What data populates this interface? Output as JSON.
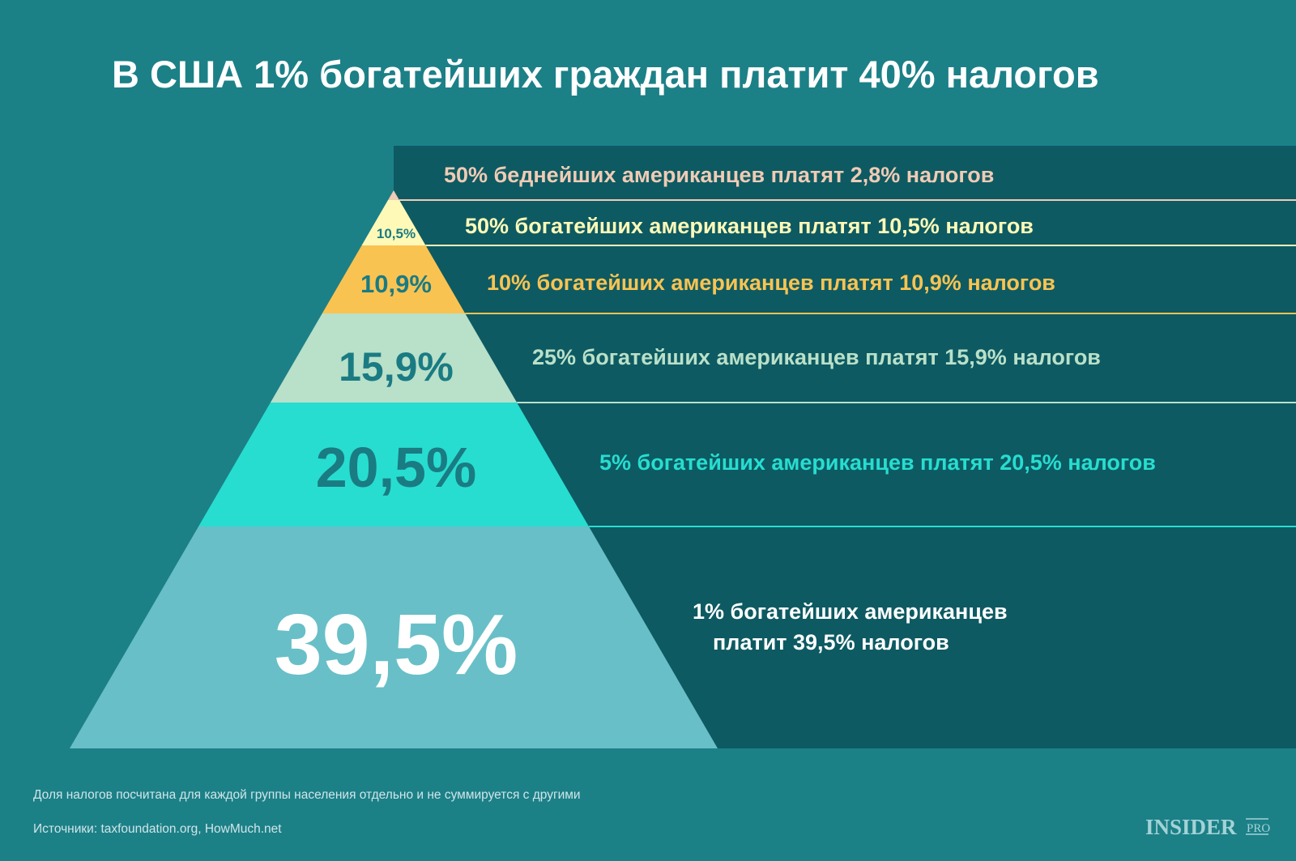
{
  "chart_data": {
    "type": "pyramid",
    "title": "В США 1% богатейших граждан платит 40% налогов",
    "tiers": [
      {
        "group": "50% беднейших",
        "value": 2.8,
        "pyramid_label": "",
        "text": "50% беднейших американцев платят 2,8% налогов",
        "color": "#f0cbb5"
      },
      {
        "group": "50% богатейших",
        "value": 10.5,
        "pyramid_label": "10,5%",
        "text": "50% богатейших американцев  платят 10,5% налогов",
        "color": "#fff9b8"
      },
      {
        "group": "10% богатейших",
        "value": 10.9,
        "pyramid_label": "10,9%",
        "text": "10% богатейших американцев платят 10,9% налогов",
        "color": "#f9c352"
      },
      {
        "group": "25% богатейших",
        "value": 15.9,
        "pyramid_label": "15,9%",
        "text": "25% богатейших американцев платят 15,9% налогов",
        "color": "#b9e0c9"
      },
      {
        "group": "5% богатейших",
        "value": 20.5,
        "pyramid_label": "20,5%",
        "text": "5% богатейших американцев платят 20,5% налогов",
        "color": "#27ddd0"
      },
      {
        "group": "1% богатейших",
        "value": 39.5,
        "pyramid_label": "39,5%",
        "text_lines": [
          "1% богатейших американцев",
          "платит 39,5% налогов"
        ],
        "color": "#68bfc7"
      }
    ]
  },
  "footer": {
    "note": "Доля налогов посчитана для каждой группы населения отдельно и не суммируется с другими",
    "sources": "Источники: taxfoundation.org, HowMuch.net"
  },
  "logo": {
    "text": "INSIDER",
    "suffix": "PRO"
  },
  "colors": {
    "background": "#1c8087",
    "panel": "#0d5a62",
    "pyramid_label": "#1a7b83"
  }
}
